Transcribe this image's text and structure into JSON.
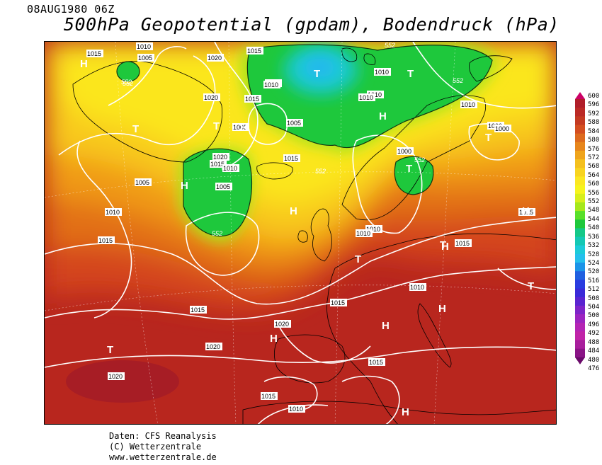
{
  "header": {
    "date": "08AUG1980 06Z",
    "title": "500hPa Geopotential (gpdam), Bodendruck (hPa)"
  },
  "colorbar": {
    "levels": [
      "600",
      "596",
      "592",
      "588",
      "584",
      "580",
      "576",
      "572",
      "568",
      "564",
      "560",
      "556",
      "552",
      "548",
      "544",
      "540",
      "536",
      "532",
      "528",
      "524",
      "520",
      "516",
      "512",
      "508",
      "504",
      "500",
      "496",
      "492",
      "488",
      "484",
      "480",
      "476"
    ],
    "colors": [
      "#cc0066",
      "#b01e2a",
      "#bb2a26",
      "#c43a22",
      "#d44e20",
      "#dd6a1e",
      "#e7861c",
      "#efa41c",
      "#f4c01e",
      "#f8d420",
      "#fbe722",
      "#f6f41e",
      "#d8ef1c",
      "#a6e81c",
      "#58e02a",
      "#1ec83c",
      "#14c888",
      "#14c8b4",
      "#1ccbd8",
      "#24c0ec",
      "#1c94e8",
      "#2060e0",
      "#2a3ce0",
      "#3a2ad8",
      "#5a24d0",
      "#7e24c8",
      "#9c24c0",
      "#b424b4",
      "#c024a8",
      "#a81e9c",
      "#8a1486",
      "#6a0a6a"
    ]
  },
  "map": {
    "pressure_labels": [
      "1015",
      "1010",
      "1005",
      "1020",
      "1010",
      "1015",
      "1020",
      "1015",
      "1010",
      "1010",
      "1010",
      "1005",
      "1010",
      "1005",
      "1000",
      "1000",
      "1020",
      "1015",
      "1010",
      "1005",
      "1015",
      "1010",
      "1000",
      "1010",
      "1005",
      "1015",
      "1010",
      "1010",
      "1015",
      "1010",
      "1015",
      "1015",
      "1015",
      "1020",
      "1020",
      "1020",
      "1015",
      "1010",
      "1015"
    ],
    "geopotential_labels": [
      "552",
      "552",
      "552",
      "552",
      "552",
      "552",
      "552"
    ],
    "centers": [
      "H",
      "T",
      "T",
      "H",
      "T",
      "H",
      "T",
      "T",
      "H",
      "H",
      "T",
      "T",
      "H",
      "H",
      "T",
      "T",
      "H",
      "H",
      "H",
      "T",
      "H"
    ]
  },
  "footer": {
    "line1": "Daten: CFS Reanalysis",
    "line2": "(C) Wetterzentrale",
    "line3": "www.wetterzentrale.de"
  }
}
